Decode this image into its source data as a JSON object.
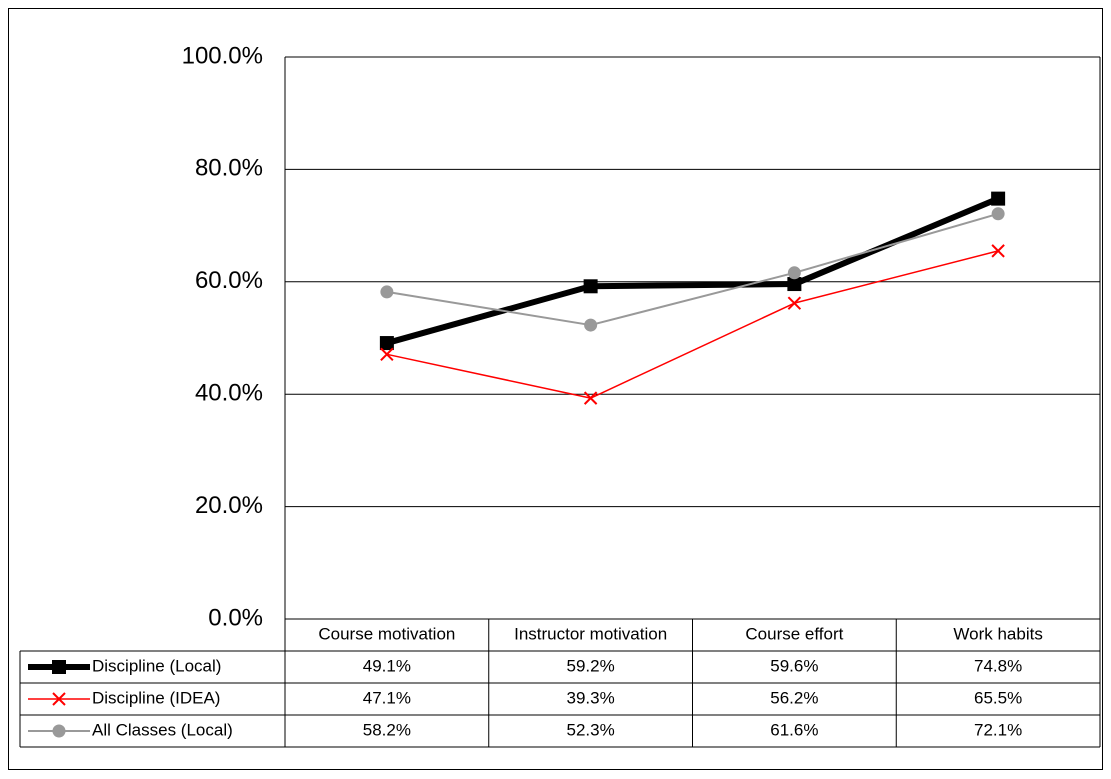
{
  "chart_data": {
    "type": "line",
    "categories": [
      "Course motivation",
      "Instructor motivation",
      "Course effort",
      "Work habits"
    ],
    "series": [
      {
        "name": "Discipline (Local)",
        "color": "#000000",
        "marker": "square",
        "line_width": 6,
        "values": [
          49.1,
          59.2,
          59.6,
          74.8
        ],
        "value_labels": [
          "49.1%",
          "59.2%",
          "59.6%",
          "74.8%"
        ]
      },
      {
        "name": "Discipline (IDEA)",
        "color": "#ff0000",
        "marker": "x",
        "line_width": 1.5,
        "values": [
          47.1,
          39.3,
          56.2,
          65.5
        ],
        "value_labels": [
          "47.1%",
          "39.3%",
          "56.2%",
          "65.5%"
        ]
      },
      {
        "name": "All Classes (Local)",
        "color": "#999999",
        "marker": "circle",
        "line_width": 2,
        "values": [
          58.2,
          52.3,
          61.6,
          72.1
        ],
        "value_labels": [
          "58.2%",
          "52.3%",
          "61.6%",
          "72.1%"
        ]
      }
    ],
    "ylim": [
      0,
      100
    ],
    "yticks": [
      {
        "value": 0,
        "label": "0.0%"
      },
      {
        "value": 20,
        "label": "20.0%"
      },
      {
        "value": 40,
        "label": "40.0%"
      },
      {
        "value": 60,
        "label": "60.0%"
      },
      {
        "value": 80,
        "label": "80.0%"
      },
      {
        "value": 100,
        "label": "100.0%"
      }
    ],
    "grid": true
  }
}
